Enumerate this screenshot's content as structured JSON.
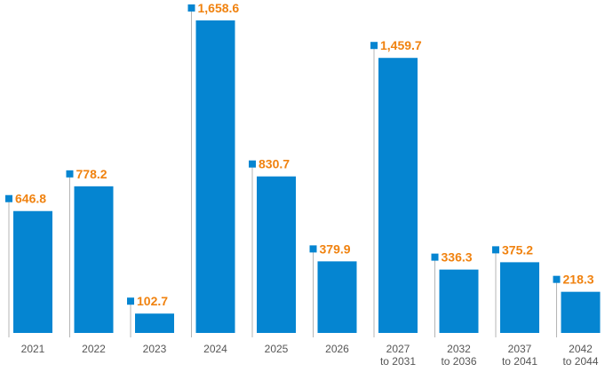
{
  "chart_data": {
    "type": "bar",
    "categories": [
      [
        "2021"
      ],
      [
        "2022"
      ],
      [
        "2023"
      ],
      [
        "2024"
      ],
      [
        "2025"
      ],
      [
        "2026"
      ],
      [
        "2027",
        "to 2031"
      ],
      [
        "2032",
        "to 2036"
      ],
      [
        "2037",
        "to 2041"
      ],
      [
        "2042",
        "to 2044"
      ]
    ],
    "values": [
      646.8,
      778.2,
      102.7,
      1658.6,
      830.7,
      379.9,
      1459.7,
      336.3,
      375.2,
      218.3
    ],
    "value_labels": [
      "646.8",
      "778.2",
      "102.7",
      "1,658.6",
      "830.7",
      "379.9",
      "1,459.7",
      "336.3",
      "375.2",
      "218.3"
    ],
    "ylim": [
      0,
      1658.6
    ],
    "grid": false,
    "legend": "none",
    "colors": {
      "bar": "#0585d1",
      "value_label": "#f0820f",
      "leader": "#b5b5b5",
      "tick_label": "#555555"
    }
  }
}
